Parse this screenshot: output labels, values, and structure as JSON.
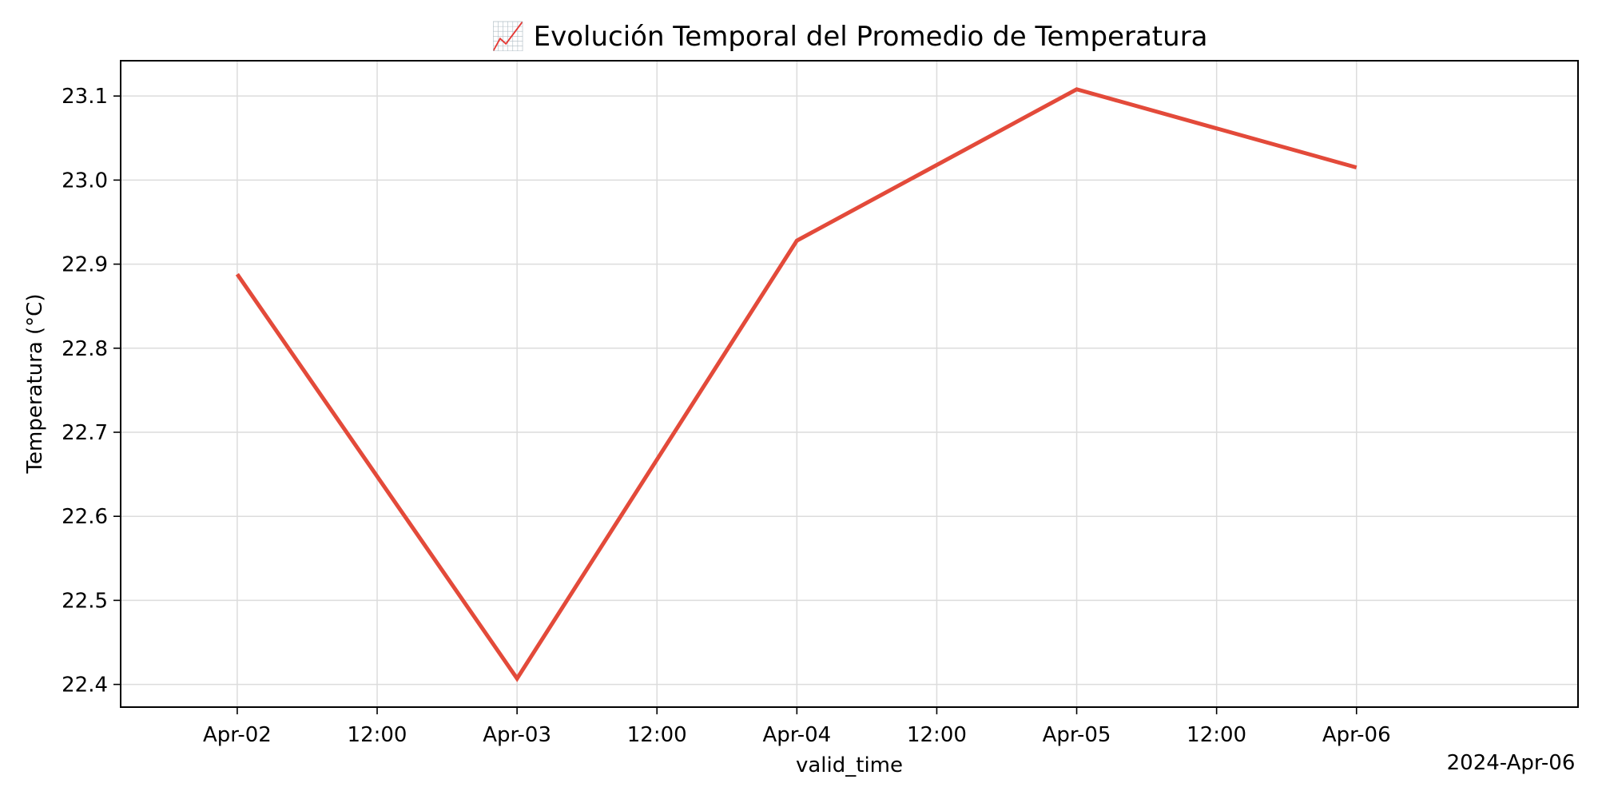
{
  "chart_data": {
    "type": "line",
    "title": "📈 Evolución Temporal del Promedio de Temperatura",
    "xlabel": "valid_time",
    "ylabel": "Temperatura (°C)",
    "x_tick_labels": [
      "Apr-02",
      "12:00",
      "Apr-03",
      "12:00",
      "Apr-04",
      "12:00",
      "Apr-05",
      "12:00",
      "Apr-06"
    ],
    "x_offset_label": "2024-Apr-06",
    "y_ticks": [
      22.4,
      22.5,
      22.6,
      22.7,
      22.8,
      22.9,
      23.0,
      23.1
    ],
    "y_tick_labels": [
      "22.4",
      "22.5",
      "22.6",
      "22.7",
      "22.8",
      "22.9",
      "23.0",
      "23.1"
    ],
    "xlim": [
      "2024-04-01T14:00",
      "2024-04-06T19:00"
    ],
    "ylim": [
      22.373,
      23.142
    ],
    "grid": true,
    "series": [
      {
        "color": "#e34a3a",
        "x": [
          "2024-04-02",
          "2024-04-03",
          "2024-04-04",
          "2024-04-05",
          "2024-04-06"
        ],
        "values": [
          22.888,
          22.407,
          22.928,
          23.108,
          23.015
        ]
      }
    ]
  }
}
